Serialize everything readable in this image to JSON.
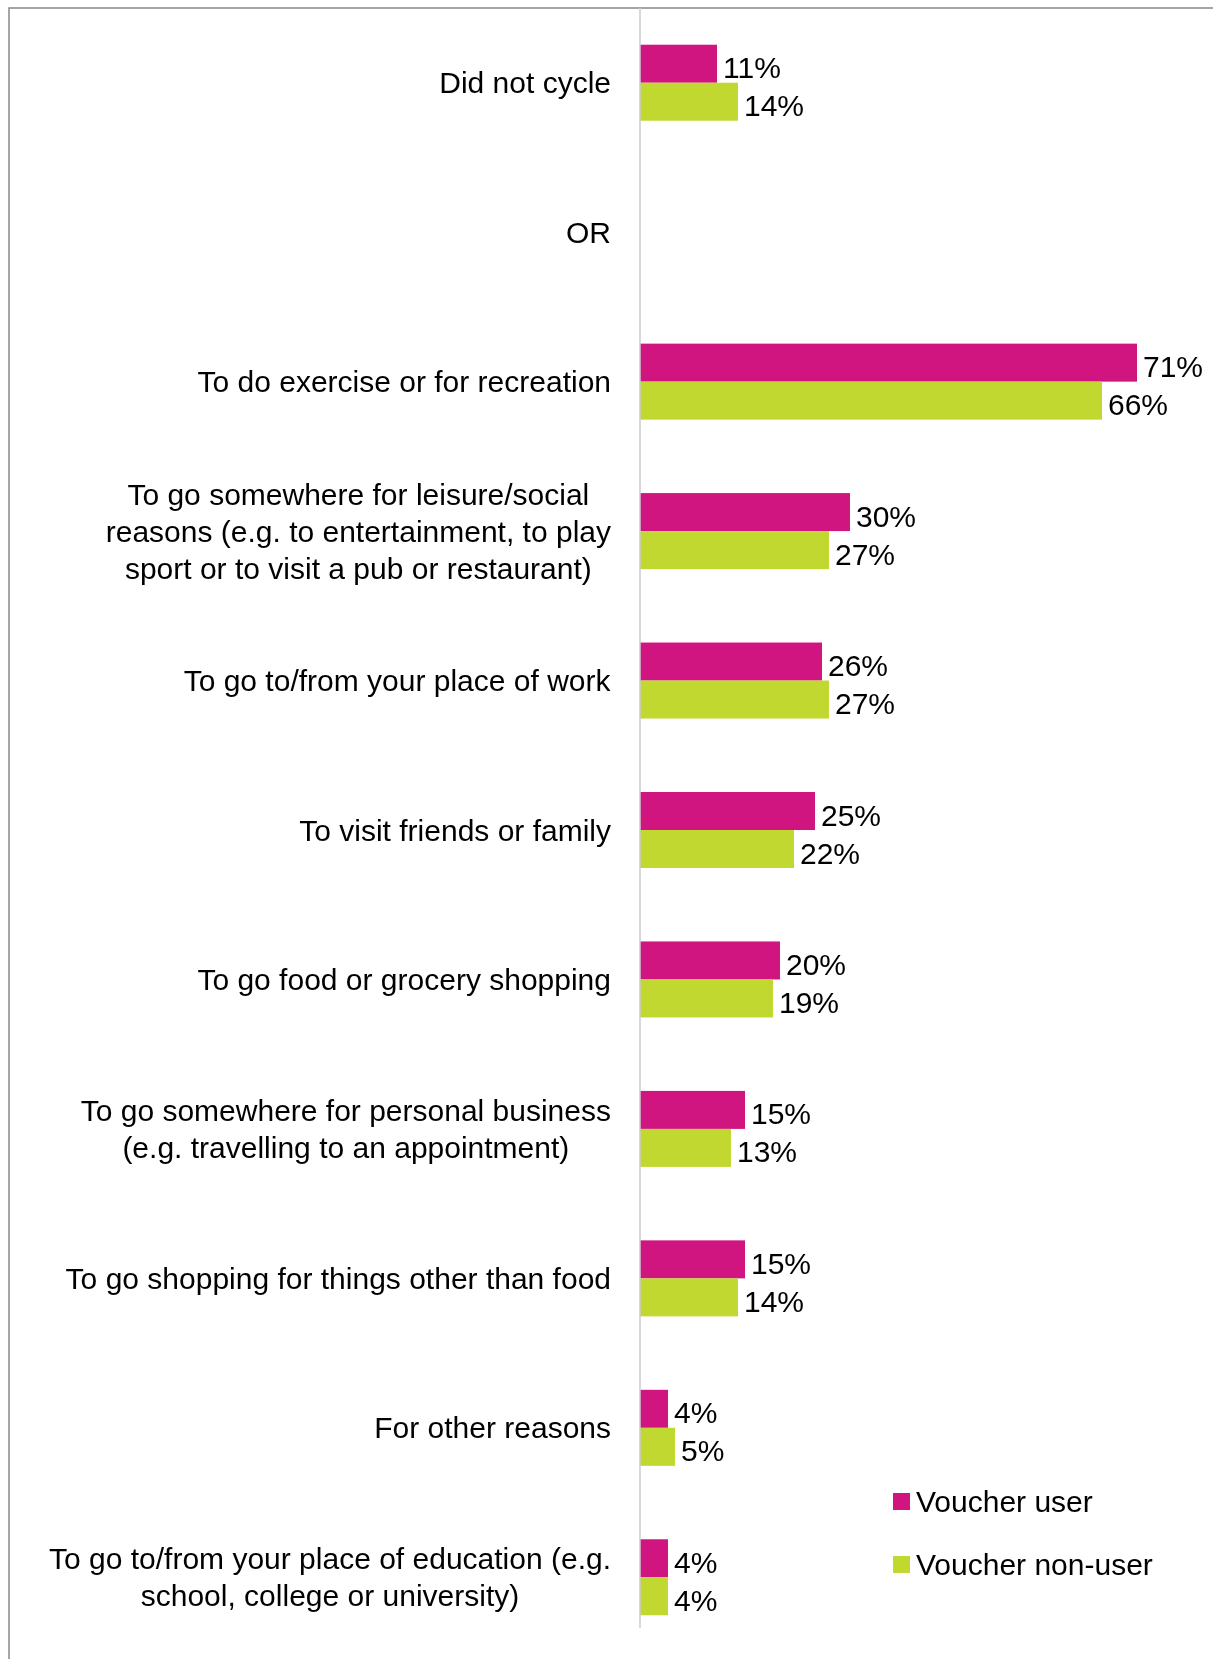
{
  "chart_data": {
    "type": "bar",
    "orientation": "horizontal",
    "categories": [
      "Did not cycle",
      "OR",
      "To do exercise or for recreation",
      "To go somewhere for leisure/social reasons (e.g. to entertainment, to play sport or to visit a pub or restaurant)",
      "To go to/from your place of work",
      "To visit friends or family",
      "To go food or grocery shopping",
      "To go somewhere for personal business (e.g. travelling to an appointment)",
      "To go shopping for things other than food",
      "For other reasons",
      "To go to/from your place of education (e.g. school, college or university)"
    ],
    "series": [
      {
        "name": "Voucher user",
        "color": "#d01480",
        "values": [
          11,
          null,
          71,
          30,
          26,
          25,
          20,
          15,
          15,
          4,
          4
        ],
        "value_labels": [
          "11%",
          null,
          "71%",
          "30%",
          "26%",
          "25%",
          "20%",
          "15%",
          "15%",
          "4%",
          "4%"
        ]
      },
      {
        "name": "Voucher non-user",
        "color": "#c0d830",
        "values": [
          14,
          null,
          66,
          27,
          27,
          22,
          19,
          13,
          14,
          5,
          4
        ],
        "value_labels": [
          "14%",
          null,
          "66%",
          "27%",
          "27%",
          "22%",
          "19%",
          "13%",
          "14%",
          "5%",
          "4%"
        ]
      }
    ],
    "legend": "bottom right"
  }
}
